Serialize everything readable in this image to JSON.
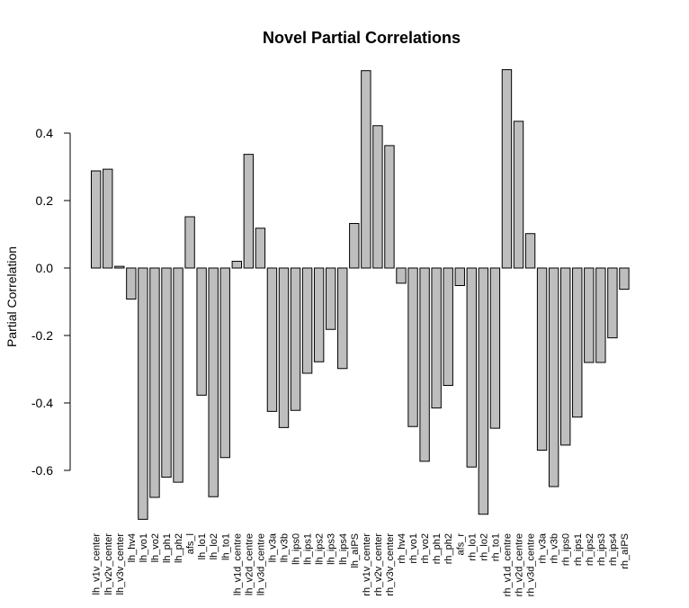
{
  "chart_data": {
    "type": "bar",
    "title": "Novel Partial Correlations",
    "xlabel": "",
    "ylabel": "Partial Correlation",
    "ylim": [
      -0.75,
      0.6
    ],
    "yticks": [
      -0.6,
      -0.4,
      -0.2,
      0.0,
      0.2,
      0.4
    ],
    "ytick_labels": [
      "-0.6",
      "-0.4",
      "-0.2",
      "0.0",
      "0.2",
      "0.4"
    ],
    "bar_color": "#bebebe",
    "categories": [
      "lh_v1v_center",
      "lh_v2v_center",
      "lh_v3v_center",
      "lh_hv4",
      "lh_vo1",
      "lh_vo2",
      "lh_ph1",
      "lh_ph2",
      "afs_l",
      "lh_lo1",
      "lh_lo2",
      "lh_to1",
      "lh_v1d_centre",
      "lh_v2d_centre",
      "lh_v3d_centre",
      "lh_v3a",
      "lh_v3b",
      "lh_ips0",
      "lh_ips1",
      "lh_ips2",
      "lh_ips3",
      "lh_ips4",
      "lh_aIPS",
      "rh_v1v_center",
      "rh_v2v_center",
      "rh_v3v_center",
      "rh_hv4",
      "rh_vo1",
      "rh_vo2",
      "rh_ph1",
      "rh_ph2",
      "afs_r",
      "rh_lo1",
      "rh_lo2",
      "rh_to1",
      "rh_v1d_centre",
      "rh_v2d_centre",
      "rh_v3d_centre",
      "rh_v3a",
      "rh_v3b",
      "rh_ips0",
      "rh_ips1",
      "rh_ips2",
      "rh_ips3",
      "rh_ips4",
      "rh_aIPS"
    ],
    "values": [
      0.288,
      0.293,
      0.005,
      -0.092,
      -0.745,
      -0.68,
      -0.62,
      -0.635,
      0.152,
      -0.377,
      -0.678,
      -0.562,
      0.02,
      0.337,
      0.118,
      -0.425,
      -0.473,
      -0.422,
      -0.312,
      -0.278,
      -0.182,
      -0.298,
      0.132,
      0.585,
      0.422,
      0.363,
      -0.045,
      -0.47,
      -0.573,
      -0.415,
      -0.348,
      -0.052,
      -0.59,
      -0.73,
      -0.475,
      0.588,
      0.435,
      0.102,
      -0.54,
      -0.648,
      -0.525,
      -0.442,
      -0.28,
      -0.28,
      -0.207,
      -0.063
    ]
  }
}
